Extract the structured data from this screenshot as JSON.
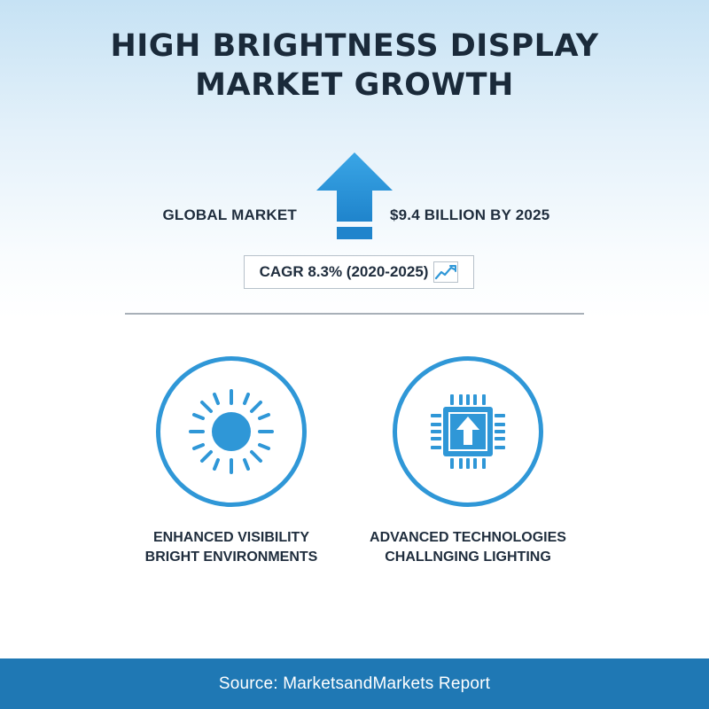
{
  "title": {
    "line1": "HIGH BRIGHTNESS DISPLAY",
    "line2": "MARKET GROWTH"
  },
  "market": {
    "label": "GLOBAL MARKET",
    "value": "$9.4 BILLION BY 2025",
    "indicator_icon": "up-arrow-icon"
  },
  "cagr": {
    "text": "CAGR 8.3% (2020-2025)",
    "icon": "trend-up-icon"
  },
  "features": [
    {
      "icon": "sun-icon",
      "line1": "ENHANCED VISIBILITY",
      "line2": "BRIGHT ENVIRONMENTS"
    },
    {
      "icon": "chip-icon",
      "line1": "ADVANCED TECHNOLOGIES",
      "line2": "CHALLNGING LIGHTING"
    }
  ],
  "footer": {
    "source": "Source: MarketsandMarkets Report"
  },
  "colors": {
    "accent": "#2f97d7",
    "footer_bg": "#1f78b4",
    "text": "#1f2d3d"
  }
}
